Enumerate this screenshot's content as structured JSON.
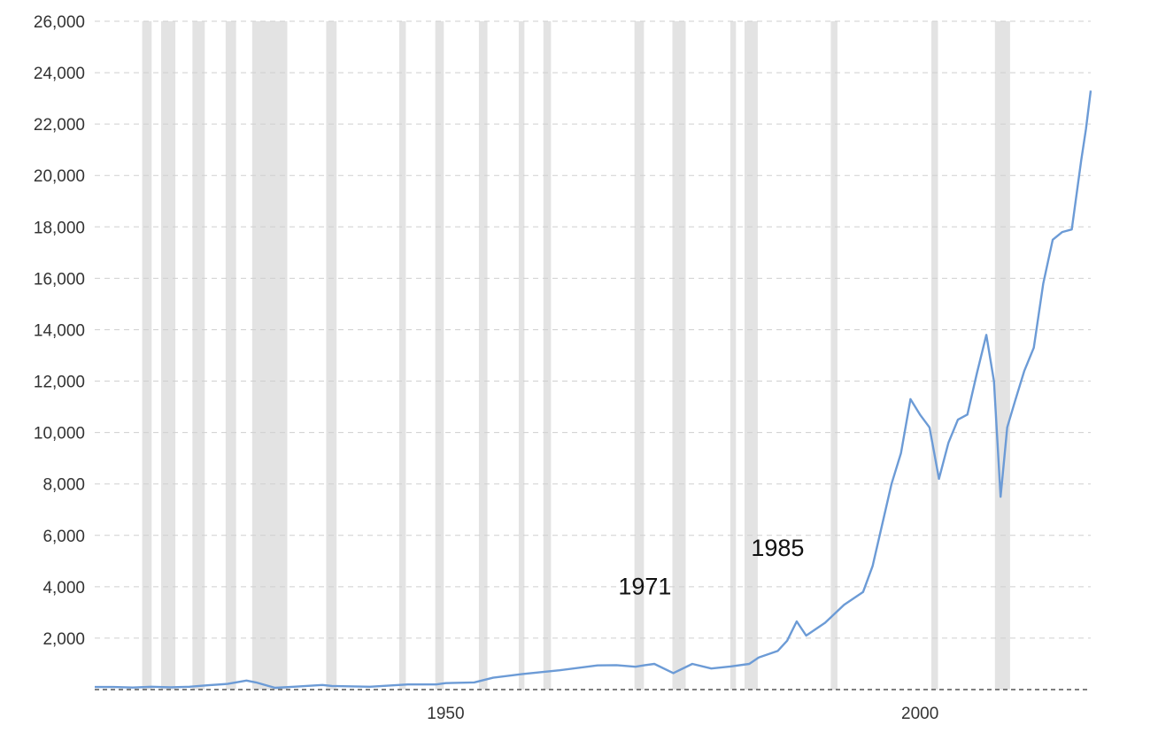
{
  "chart_data": {
    "type": "line",
    "title": "",
    "xlabel": "",
    "ylabel": "",
    "xlim": [
      1913,
      2018
    ],
    "ylim": [
      0,
      26000
    ],
    "y_ticks": [
      2000,
      4000,
      6000,
      8000,
      10000,
      12000,
      14000,
      16000,
      18000,
      20000,
      22000,
      24000,
      26000
    ],
    "y_tick_labels": [
      "2,000",
      "4,000",
      "6,000",
      "8,000",
      "10,000",
      "12,000",
      "14,000",
      "16,000",
      "18,000",
      "20,000",
      "22,000",
      "24,000",
      "26,000"
    ],
    "x_ticks": [
      1950,
      2000
    ],
    "x_tick_labels": [
      "1950",
      "2000"
    ],
    "grid": "horizontal dashed",
    "legend": "none",
    "series": [
      {
        "color": "#6c9bd6",
        "x": [
          1913,
          1915,
          1917,
          1919,
          1921,
          1923,
          1925,
          1927,
          1929,
          1930,
          1932,
          1934,
          1937,
          1938,
          1942,
          1946,
          1949,
          1950,
          1953,
          1955,
          1958,
          1962,
          1966,
          1968,
          1970,
          1971,
          1972,
          1974,
          1976,
          1978,
          1980,
          1982,
          1983,
          1985,
          1986,
          1987,
          1988,
          1990,
          1992,
          1994,
          1995,
          1996,
          1997,
          1998,
          1999,
          2000,
          2001,
          2002,
          2003,
          2004,
          2005,
          2006,
          2007,
          2007.8,
          2008.5,
          2009.2,
          2010,
          2011,
          2012,
          2013,
          2014,
          2015,
          2016,
          2017,
          2017.5,
          2018
        ],
        "y": [
          100,
          100,
          80,
          110,
          90,
          110,
          170,
          220,
          350,
          280,
          70,
          110,
          180,
          140,
          110,
          200,
          200,
          250,
          280,
          460,
          600,
          750,
          940,
          950,
          890,
          950,
          1000,
          640,
          1000,
          820,
          900,
          1000,
          1250,
          1500,
          1900,
          2650,
          2100,
          2600,
          3300,
          3800,
          4800,
          6400,
          8000,
          9200,
          11300,
          10700,
          10200,
          8200,
          9600,
          10500,
          10700,
          12300,
          13800,
          12000,
          7500,
          10200,
          11200,
          12400,
          13300,
          15800,
          17500,
          17800,
          17900,
          20600,
          21800,
          23300
        ]
      }
    ],
    "shaded_periods": [
      [
        1918,
        1919
      ],
      [
        1920,
        1921.5
      ],
      [
        1923.3,
        1924.6
      ],
      [
        1926.8,
        1927.9
      ],
      [
        1929.6,
        1933.3
      ],
      [
        1937.4,
        1938.5
      ],
      [
        1945.1,
        1945.8
      ],
      [
        1948.9,
        1949.8
      ],
      [
        1953.5,
        1954.4
      ],
      [
        1957.7,
        1958.3
      ],
      [
        1960.3,
        1961.1
      ],
      [
        1969.9,
        1970.9
      ],
      [
        1973.9,
        1975.3
      ],
      [
        1980,
        1980.6
      ],
      [
        1981.5,
        1982.9
      ],
      [
        1990.6,
        1991.3
      ],
      [
        2001.2,
        2001.9
      ],
      [
        2007.9,
        2009.5
      ]
    ],
    "annotations": [
      {
        "text": "1971",
        "x": 1971,
        "y": 3700
      },
      {
        "text": "1985",
        "x": 1985,
        "y": 5200
      }
    ]
  }
}
